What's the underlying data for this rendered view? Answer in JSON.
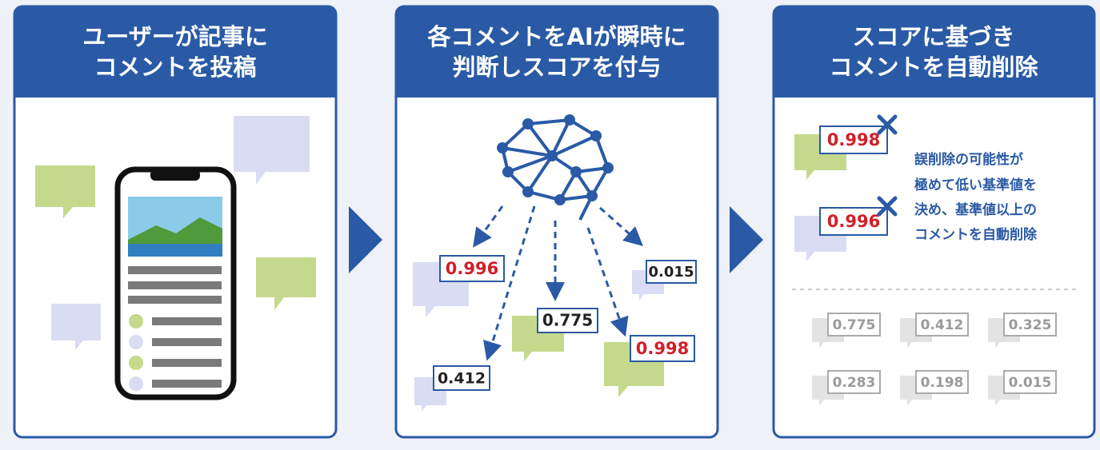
{
  "panels": [
    {
      "title": [
        "ユーザーが記事に",
        "コメントを投稿"
      ]
    },
    {
      "title": [
        "各コメントをAIが瞬時に",
        "判断しスコアを付与"
      ],
      "scores": [
        "0.996",
        "0.775",
        "0.015",
        "0.412",
        "0.998"
      ]
    },
    {
      "title": [
        "スコアに基づき",
        "コメントを自動削除"
      ],
      "deleted": [
        "0.998",
        "0.996"
      ],
      "note": [
        "誤削除の可能性が",
        "極めて低い基準値を",
        "決め、基準値以上の",
        "コメントを自動削除"
      ],
      "kept": [
        "0.775",
        "0.412",
        "0.325",
        "0.283",
        "0.198",
        "0.015"
      ]
    }
  ]
}
